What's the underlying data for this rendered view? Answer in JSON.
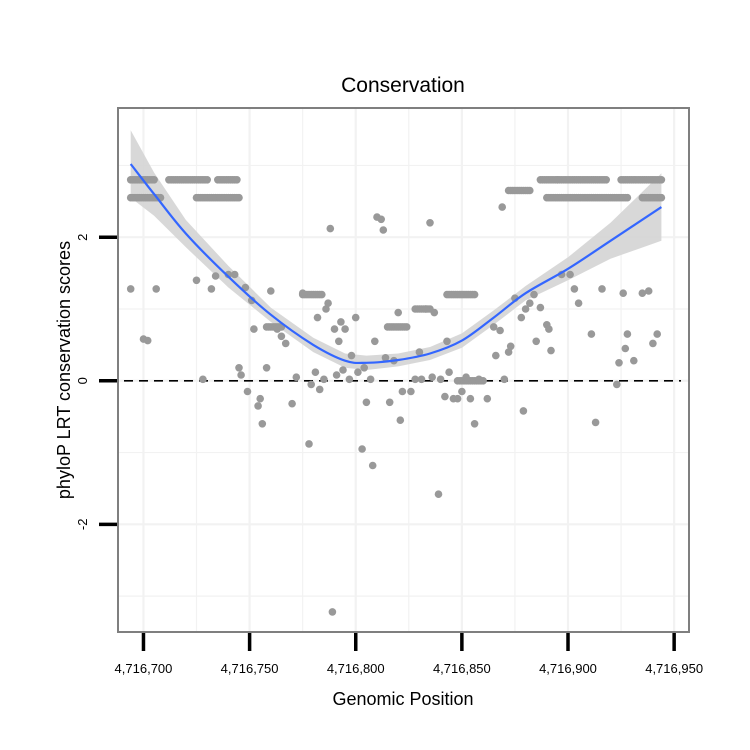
{
  "chart_data": {
    "type": "scatter",
    "title": "Conservation",
    "xlabel": "Genomic Position",
    "ylabel": "phyloP LRT conservation scores",
    "xlim": [
      4716688,
      4716957
    ],
    "ylim": [
      -3.5,
      3.8
    ],
    "x_ticks": [
      {
        "value": 4716700,
        "label": "4,716,700"
      },
      {
        "value": 4716750,
        "label": "4,716,750"
      },
      {
        "value": 4716800,
        "label": "4,716,800"
      },
      {
        "value": 4716850,
        "label": "4,716,850"
      },
      {
        "value": 4716900,
        "label": "4,716,900"
      },
      {
        "value": 4716950,
        "label": "4,716,950"
      }
    ],
    "y_ticks": [
      {
        "value": -2,
        "label": "-2"
      },
      {
        "value": 0,
        "label": "0"
      },
      {
        "value": 2,
        "label": "2"
      }
    ],
    "reference_line": {
      "y": 0,
      "style": "dashed"
    },
    "colors": {
      "points": "#999999",
      "smooth": "#3366ff",
      "ribbon": "#d4d4d4",
      "grid": "#f2f2f2",
      "border": "#7f7f7f"
    },
    "smooth_curve": {
      "x": [
        4716694,
        4716705,
        4716720,
        4716740,
        4716760,
        4716780,
        4716795,
        4716805,
        4716820,
        4716835,
        4716850,
        4716865,
        4716880,
        4716900,
        4716920,
        4716944
      ],
      "y": [
        3.02,
        2.6,
        2.05,
        1.45,
        0.92,
        0.5,
        0.28,
        0.25,
        0.29,
        0.38,
        0.56,
        0.88,
        1.22,
        1.56,
        1.95,
        2.42
      ],
      "lower": [
        2.55,
        2.3,
        1.86,
        1.3,
        0.82,
        0.4,
        0.18,
        0.15,
        0.2,
        0.29,
        0.46,
        0.78,
        1.12,
        1.4,
        1.7,
        1.95
      ],
      "upper": [
        3.49,
        2.9,
        2.24,
        1.6,
        1.02,
        0.6,
        0.38,
        0.35,
        0.38,
        0.47,
        0.66,
        0.98,
        1.32,
        1.72,
        2.2,
        2.89
      ]
    },
    "series": [
      {
        "name": "phyloP LRT score",
        "bands": [
          {
            "y": 2.8,
            "x_ranges": [
              [
                4716694,
                4716705
              ],
              [
                4716712,
                4716730
              ],
              [
                4716735,
                4716744
              ],
              [
                4716895,
                4716918
              ],
              [
                4716925,
                4716944
              ]
            ]
          },
          {
            "y": 2.55,
            "x_ranges": [
              [
                4716694,
                4716708
              ],
              [
                4716725,
                4716745
              ],
              [
                4716890,
                4716928
              ],
              [
                4716935,
                4716944
              ]
            ]
          },
          {
            "y": 2.8,
            "x_ranges": [
              [
                4716887,
                4716895
              ]
            ]
          },
          {
            "y": 2.65,
            "x_ranges": [
              [
                4716872,
                4716882
              ]
            ]
          },
          {
            "y": 1.2,
            "x_ranges": [
              [
                4716775,
                4716784
              ],
              [
                4716843,
                4716856
              ]
            ]
          },
          {
            "y": 1.0,
            "x_ranges": [
              [
                4716828,
                4716835
              ]
            ]
          },
          {
            "y": 0.75,
            "x_ranges": [
              [
                4716758,
                4716765
              ],
              [
                4716815,
                4716824
              ]
            ]
          },
          {
            "y": 0.0,
            "x_ranges": [
              [
                4716848,
                4716860
              ]
            ]
          }
        ],
        "points": [
          {
            "x": 4716694,
            "y": 1.28
          },
          {
            "x": 4716700,
            "y": 0.58
          },
          {
            "x": 4716702,
            "y": 0.56
          },
          {
            "x": 4716706,
            "y": 1.28
          },
          {
            "x": 4716725,
            "y": 1.4
          },
          {
            "x": 4716728,
            "y": 0.02
          },
          {
            "x": 4716732,
            "y": 1.28
          },
          {
            "x": 4716734,
            "y": 1.46
          },
          {
            "x": 4716740,
            "y": 1.48
          },
          {
            "x": 4716743,
            "y": 1.48
          },
          {
            "x": 4716745,
            "y": 0.18
          },
          {
            "x": 4716746,
            "y": 0.08
          },
          {
            "x": 4716748,
            "y": 1.3
          },
          {
            "x": 4716749,
            "y": -0.15
          },
          {
            "x": 4716751,
            "y": 1.12
          },
          {
            "x": 4716752,
            "y": 0.72
          },
          {
            "x": 4716754,
            "y": -0.35
          },
          {
            "x": 4716755,
            "y": -0.25
          },
          {
            "x": 4716756,
            "y": -0.6
          },
          {
            "x": 4716758,
            "y": 0.18
          },
          {
            "x": 4716760,
            "y": 1.25
          },
          {
            "x": 4716763,
            "y": 0.72
          },
          {
            "x": 4716765,
            "y": 0.62
          },
          {
            "x": 4716767,
            "y": 0.52
          },
          {
            "x": 4716770,
            "y": -0.32
          },
          {
            "x": 4716772,
            "y": 0.05
          },
          {
            "x": 4716775,
            "y": 1.22
          },
          {
            "x": 4716778,
            "y": -0.88
          },
          {
            "x": 4716779,
            "y": -0.05
          },
          {
            "x": 4716781,
            "y": 0.12
          },
          {
            "x": 4716782,
            "y": 0.88
          },
          {
            "x": 4716783,
            "y": -0.12
          },
          {
            "x": 4716785,
            "y": 0.02
          },
          {
            "x": 4716786,
            "y": 1.0
          },
          {
            "x": 4716787,
            "y": 1.08
          },
          {
            "x": 4716788,
            "y": 2.12
          },
          {
            "x": 4716789,
            "y": -3.22
          },
          {
            "x": 4716790,
            "y": 0.72
          },
          {
            "x": 4716791,
            "y": 0.08
          },
          {
            "x": 4716792,
            "y": 0.55
          },
          {
            "x": 4716793,
            "y": 0.82
          },
          {
            "x": 4716794,
            "y": 0.15
          },
          {
            "x": 4716795,
            "y": 0.72
          },
          {
            "x": 4716797,
            "y": 0.02
          },
          {
            "x": 4716798,
            "y": 0.35
          },
          {
            "x": 4716800,
            "y": 0.88
          },
          {
            "x": 4716801,
            "y": 0.12
          },
          {
            "x": 4716803,
            "y": -0.95
          },
          {
            "x": 4716804,
            "y": 0.18
          },
          {
            "x": 4716805,
            "y": -0.3
          },
          {
            "x": 4716807,
            "y": 0.02
          },
          {
            "x": 4716808,
            "y": -1.18
          },
          {
            "x": 4716809,
            "y": 0.55
          },
          {
            "x": 4716810,
            "y": 2.28
          },
          {
            "x": 4716812,
            "y": 2.25
          },
          {
            "x": 4716813,
            "y": 2.1
          },
          {
            "x": 4716814,
            "y": 0.32
          },
          {
            "x": 4716816,
            "y": -0.3
          },
          {
            "x": 4716818,
            "y": 0.28
          },
          {
            "x": 4716820,
            "y": 0.95
          },
          {
            "x": 4716821,
            "y": -0.55
          },
          {
            "x": 4716822,
            "y": -0.15
          },
          {
            "x": 4716826,
            "y": -0.15
          },
          {
            "x": 4716828,
            "y": 0.02
          },
          {
            "x": 4716830,
            "y": 0.4
          },
          {
            "x": 4716831,
            "y": 0.02
          },
          {
            "x": 4716833,
            "y": 1.0
          },
          {
            "x": 4716835,
            "y": 2.2
          },
          {
            "x": 4716836,
            "y": 0.05
          },
          {
            "x": 4716837,
            "y": 0.95
          },
          {
            "x": 4716839,
            "y": -1.58
          },
          {
            "x": 4716840,
            "y": 0.02
          },
          {
            "x": 4716842,
            "y": -0.22
          },
          {
            "x": 4716843,
            "y": 0.55
          },
          {
            "x": 4716844,
            "y": 0.12
          },
          {
            "x": 4716846,
            "y": -0.25
          },
          {
            "x": 4716848,
            "y": -0.25
          },
          {
            "x": 4716850,
            "y": -0.15
          },
          {
            "x": 4716852,
            "y": 0.05
          },
          {
            "x": 4716854,
            "y": -0.25
          },
          {
            "x": 4716856,
            "y": -0.6
          },
          {
            "x": 4716858,
            "y": 0.02
          },
          {
            "x": 4716862,
            "y": -0.25
          },
          {
            "x": 4716865,
            "y": 0.75
          },
          {
            "x": 4716866,
            "y": 0.35
          },
          {
            "x": 4716868,
            "y": 0.7
          },
          {
            "x": 4716869,
            "y": 2.42
          },
          {
            "x": 4716870,
            "y": 0.02
          },
          {
            "x": 4716872,
            "y": 0.4
          },
          {
            "x": 4716873,
            "y": 0.48
          },
          {
            "x": 4716875,
            "y": 1.15
          },
          {
            "x": 4716878,
            "y": 0.88
          },
          {
            "x": 4716879,
            "y": -0.42
          },
          {
            "x": 4716880,
            "y": 1.0
          },
          {
            "x": 4716882,
            "y": 1.08
          },
          {
            "x": 4716884,
            "y": 1.2
          },
          {
            "x": 4716885,
            "y": 0.55
          },
          {
            "x": 4716887,
            "y": 1.02
          },
          {
            "x": 4716890,
            "y": 0.78
          },
          {
            "x": 4716891,
            "y": 0.72
          },
          {
            "x": 4716892,
            "y": 0.42
          },
          {
            "x": 4716897,
            "y": 1.48
          },
          {
            "x": 4716901,
            "y": 1.48
          },
          {
            "x": 4716903,
            "y": 1.28
          },
          {
            "x": 4716905,
            "y": 1.08
          },
          {
            "x": 4716911,
            "y": 0.65
          },
          {
            "x": 4716913,
            "y": -0.58
          },
          {
            "x": 4716916,
            "y": 1.28
          },
          {
            "x": 4716923,
            "y": -0.05
          },
          {
            "x": 4716924,
            "y": 0.25
          },
          {
            "x": 4716926,
            "y": 1.22
          },
          {
            "x": 4716927,
            "y": 0.45
          },
          {
            "x": 4716928,
            "y": 0.65
          },
          {
            "x": 4716931,
            "y": 0.28
          },
          {
            "x": 4716935,
            "y": 1.22
          },
          {
            "x": 4716938,
            "y": 1.25
          },
          {
            "x": 4716940,
            "y": 0.52
          },
          {
            "x": 4716942,
            "y": 0.65
          }
        ]
      }
    ]
  }
}
